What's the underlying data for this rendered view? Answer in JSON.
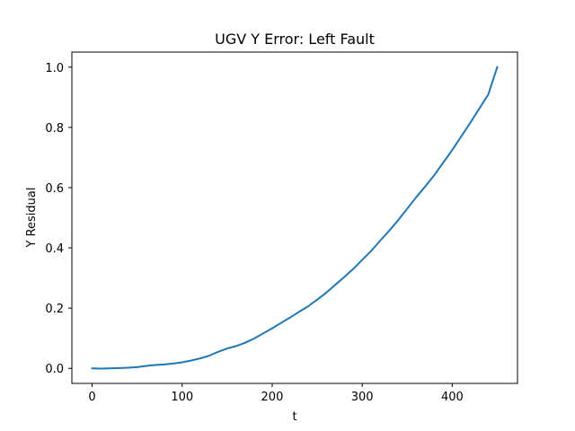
{
  "chart_data": {
    "type": "line",
    "title": "UGV Y Error: Left Fault",
    "xlabel": "t",
    "ylabel": "Y Residual",
    "xlim": [
      -22.5,
      472.5
    ],
    "ylim": [
      -0.05,
      1.05
    ],
    "xticks": [
      0,
      100,
      200,
      300,
      400
    ],
    "yticks": [
      0.0,
      0.2,
      0.4,
      0.6,
      0.8,
      1.0
    ],
    "xtick_labels": [
      "0",
      "100",
      "200",
      "300",
      "400"
    ],
    "ytick_labels": [
      "0.0",
      "0.2",
      "0.4",
      "0.6",
      "0.8",
      "1.0"
    ],
    "grid": false,
    "legend": "none",
    "series": [
      {
        "color": "#1f77b4",
        "x": [
          0,
          10,
          20,
          30,
          40,
          50,
          60,
          70,
          80,
          90,
          100,
          110,
          120,
          130,
          140,
          150,
          160,
          170,
          180,
          190,
          200,
          210,
          220,
          230,
          240,
          250,
          260,
          270,
          280,
          290,
          300,
          310,
          320,
          330,
          340,
          350,
          360,
          370,
          380,
          390,
          400,
          410,
          420,
          430,
          440,
          450
        ],
        "y": [
          0.0,
          -0.001,
          0.0,
          0.001,
          0.002,
          0.004,
          0.008,
          0.011,
          0.013,
          0.016,
          0.02,
          0.026,
          0.033,
          0.042,
          0.055,
          0.066,
          0.074,
          0.085,
          0.099,
          0.116,
          0.133,
          0.151,
          0.169,
          0.188,
          0.206,
          0.228,
          0.251,
          0.277,
          0.303,
          0.33,
          0.36,
          0.39,
          0.424,
          0.457,
          0.492,
          0.53,
          0.568,
          0.604,
          0.641,
          0.683,
          0.725,
          0.77,
          0.815,
          0.862,
          0.909,
          1.0
        ]
      }
    ]
  }
}
